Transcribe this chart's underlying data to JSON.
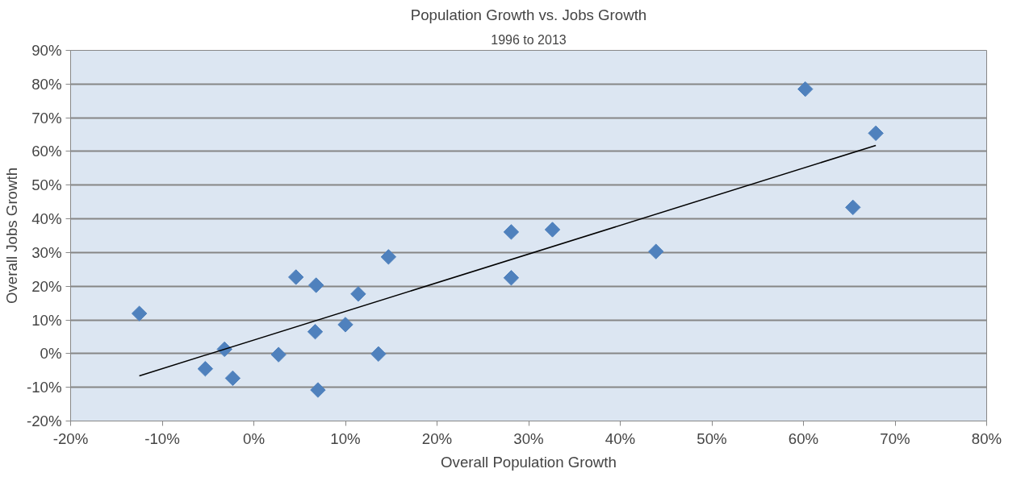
{
  "chart_data": {
    "type": "scatter",
    "title": "Population Growth vs. Jobs Growth",
    "subtitle": "1996 to 2013",
    "xlabel": "Overall Population Growth",
    "ylabel": "Overall Jobs Growth",
    "series": [
      {
        "color": "#4f81bd",
        "marker": "diamond",
        "x": [
          -12.5,
          -5.3,
          -3.2,
          -2.3,
          2.7,
          4.6,
          6.8,
          6.7,
          7.0,
          10.0,
          11.4,
          13.6,
          14.7,
          28.1,
          28.1,
          32.6,
          43.9,
          60.2,
          65.4,
          67.9
        ],
        "values": [
          11.9,
          -4.5,
          1.3,
          -7.3,
          -0.3,
          22.7,
          20.3,
          6.5,
          -10.8,
          8.6,
          17.7,
          -0.1,
          28.7,
          36.1,
          22.5,
          36.8,
          30.3,
          78.5,
          43.4,
          65.4
        ]
      },
      {
        "type": "line",
        "color": "#000000",
        "marker": "none",
        "x": [
          -12.5,
          67.9
        ],
        "values": [
          -6.6,
          61.8
        ]
      }
    ],
    "xlim": [
      -20,
      80
    ],
    "ylim": [
      -20,
      90
    ],
    "xticks": [
      {
        "value": -20,
        "label": "-20%"
      },
      {
        "value": -10,
        "label": "-10%"
      },
      {
        "value": 0,
        "label": "0%"
      },
      {
        "value": 10,
        "label": "10%"
      },
      {
        "value": 20,
        "label": "20%"
      },
      {
        "value": 30,
        "label": "30%"
      },
      {
        "value": 40,
        "label": "40%"
      },
      {
        "value": 50,
        "label": "50%"
      },
      {
        "value": 60,
        "label": "60%"
      },
      {
        "value": 70,
        "label": "70%"
      },
      {
        "value": 80,
        "label": "80%"
      }
    ],
    "yticks": [
      {
        "value": -20,
        "label": "-20%"
      },
      {
        "value": -10,
        "label": "-10%"
      },
      {
        "value": 0,
        "label": "0%"
      },
      {
        "value": 10,
        "label": "10%"
      },
      {
        "value": 20,
        "label": "20%"
      },
      {
        "value": 30,
        "label": "30%"
      },
      {
        "value": 40,
        "label": "40%"
      },
      {
        "value": 50,
        "label": "50%"
      },
      {
        "value": 60,
        "label": "60%"
      },
      {
        "value": 70,
        "label": "70%"
      },
      {
        "value": 80,
        "label": "80%"
      },
      {
        "value": 90,
        "label": "90%"
      }
    ],
    "grid": "y"
  }
}
